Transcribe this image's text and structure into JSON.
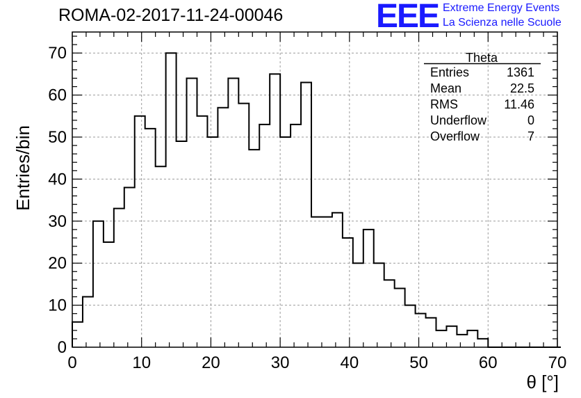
{
  "header": {
    "title": "ROMA-02-2017-11-24-00046",
    "logo_text": "EEE",
    "logo_line1": "Extreme Energy Events",
    "logo_line2": "La Scienza nelle Scuole"
  },
  "colors": {
    "logo": "#1a1aff",
    "line": "#000000",
    "grid": "#9a9a9a"
  },
  "stats_box": {
    "title": "Theta",
    "rows": [
      {
        "label": "Entries",
        "value": "1361"
      },
      {
        "label": "Mean",
        "value": "22.5"
      },
      {
        "label": "RMS",
        "value": "11.46"
      },
      {
        "label": "Underflow",
        "value": "0"
      },
      {
        "label": "Overflow",
        "value": "7"
      }
    ]
  },
  "chart_data": {
    "type": "bar",
    "style": "step-histogram",
    "xlabel": "θ [°]",
    "ylabel": "Entries/bin",
    "xlim": [
      0,
      70
    ],
    "ylim": [
      0,
      75
    ],
    "grid": true,
    "x_ticks": [
      0,
      10,
      20,
      30,
      40,
      50,
      60,
      70
    ],
    "y_ticks": [
      0,
      10,
      20,
      30,
      40,
      50,
      60,
      70
    ],
    "bin_width": 1.5,
    "bin_edges_start": 0,
    "values": [
      6,
      12,
      30,
      25,
      33,
      38,
      55,
      52,
      43,
      70,
      49,
      64,
      55,
      50,
      57,
      64,
      58,
      47,
      53,
      65,
      50,
      53,
      63,
      31,
      31,
      32,
      26,
      20,
      28,
      20,
      16,
      14,
      10,
      8,
      7,
      4,
      5,
      3,
      4,
      2,
      0,
      0,
      0,
      0,
      0,
      0,
      0
    ]
  }
}
